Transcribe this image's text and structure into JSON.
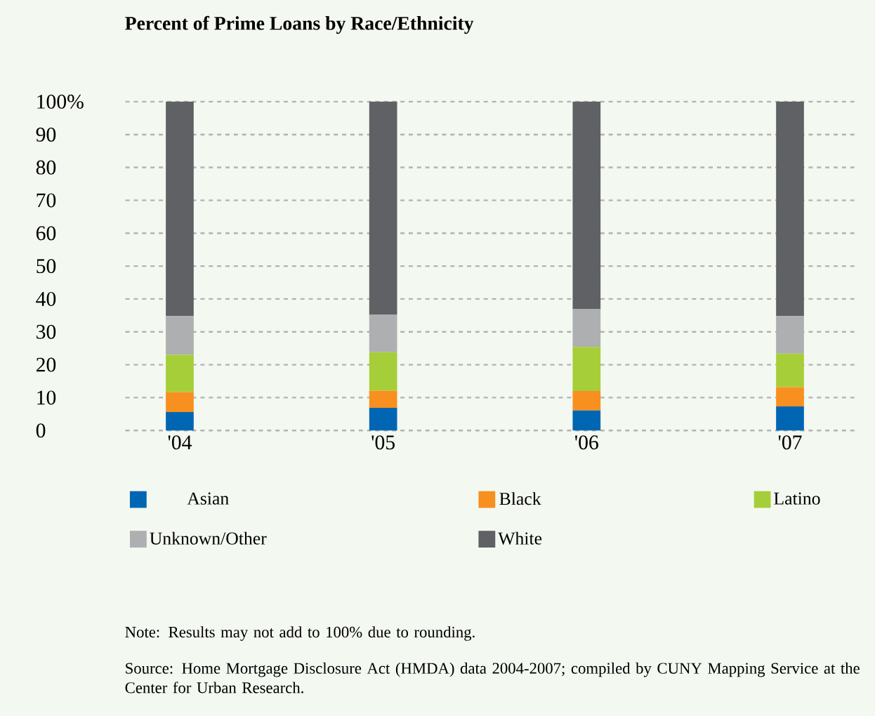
{
  "chart_data": {
    "type": "bar",
    "stacked": true,
    "title": "Percent of Prime Loans by Race/Ethnicity",
    "categories": [
      "'04",
      "'05",
      "'06",
      "'07"
    ],
    "series": [
      {
        "name": "Asian",
        "color": "#0066b3",
        "values": [
          5.6,
          6.9,
          6.1,
          7.3
        ]
      },
      {
        "name": "Black",
        "color": "#f7901e",
        "values": [
          6.1,
          5.2,
          5.9,
          5.9
        ]
      },
      {
        "name": "Latino",
        "color": "#a6ce39",
        "values": [
          11.3,
          11.7,
          13.4,
          10.2
        ]
      },
      {
        "name": "Unknown/Other",
        "color": "#adafb0",
        "values": [
          11.8,
          11.4,
          11.5,
          11.4
        ]
      },
      {
        "name": "White",
        "color": "#606164",
        "values": [
          65.2,
          64.8,
          63.1,
          65.2
        ]
      }
    ],
    "ylim": [
      0,
      100
    ],
    "yticks": [
      0,
      10,
      20,
      30,
      40,
      50,
      60,
      70,
      80,
      90,
      {
        "value": 100,
        "label": "100%"
      }
    ],
    "grid": "y",
    "legend": "bottom",
    "annotations": [
      "Note: Results may not add to 100% due to rounding.",
      "Source: Home Mortgage Disclosure Act (HMDA) data 2004-2007; compiled by CUNY Mapping Service at the Center for Urban Research."
    ]
  }
}
